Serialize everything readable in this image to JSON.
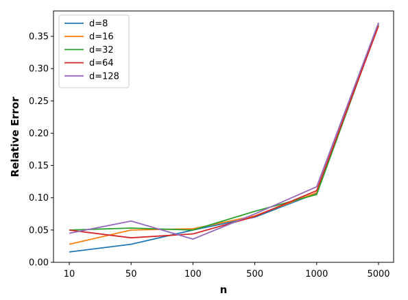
{
  "chart_data": {
    "type": "line",
    "title": "",
    "xlabel": "n",
    "ylabel": "Relative Error",
    "categories": [
      "10",
      "50",
      "100",
      "500",
      "1000",
      "5000"
    ],
    "ylim": [
      0,
      0.38
    ],
    "yticks": [
      0.0,
      0.05,
      0.1,
      0.15,
      0.2,
      0.25,
      0.3,
      0.35
    ],
    "ytick_labels": [
      "0.00",
      "0.05",
      "0.10",
      "0.15",
      "0.20",
      "0.25",
      "0.30",
      "0.35"
    ],
    "grid": false,
    "legend_position": "top-left",
    "series": [
      {
        "name": "d=8",
        "color": "#1f77b4",
        "values": [
          0.016,
          0.028,
          0.05,
          0.07,
          0.107,
          0.37
        ]
      },
      {
        "name": "d=16",
        "color": "#ff7f0e",
        "values": [
          0.028,
          0.05,
          0.052,
          0.072,
          0.108,
          0.369
        ]
      },
      {
        "name": "d=32",
        "color": "#2ca02c",
        "values": [
          0.05,
          0.053,
          0.05,
          0.079,
          0.105,
          0.368
        ]
      },
      {
        "name": "d=64",
        "color": "#d62728",
        "values": [
          0.05,
          0.038,
          0.044,
          0.071,
          0.111,
          0.366
        ]
      },
      {
        "name": "d=128",
        "color": "#9467bd",
        "values": [
          0.045,
          0.064,
          0.036,
          0.075,
          0.117,
          0.371
        ]
      }
    ]
  }
}
